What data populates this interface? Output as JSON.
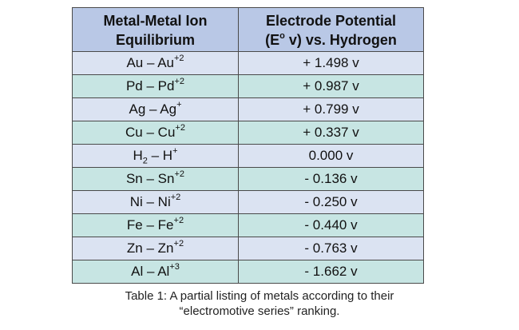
{
  "table": {
    "headers": [
      [
        "Metal-Metal Ion",
        "Equilibrium"
      ],
      [
        "Electrode Potential",
        "(E",
        "o",
        " v) vs. Hydrogen"
      ]
    ],
    "rows": [
      {
        "metal": "Au – Au",
        "sup": "+2",
        "sub": "",
        "ion": "",
        "potential": "+ 1.498 v"
      },
      {
        "metal": "Pd – Pd",
        "sup": "+2",
        "sub": "",
        "ion": "",
        "potential": "+ 0.987 v"
      },
      {
        "metal": "Ag – Ag",
        "sup": "+",
        "sub": "",
        "ion": "",
        "potential": "+ 0.799 v"
      },
      {
        "metal": "Cu – Cu",
        "sup": "+2",
        "sub": "",
        "ion": "",
        "potential": "+ 0.337 v"
      },
      {
        "metal": "H",
        "sub": "2",
        "ion": " – H",
        "sup": "+",
        "potential": "0.000 v"
      },
      {
        "metal": "Sn – Sn",
        "sup": "+2",
        "sub": "",
        "ion": "",
        "potential": "- 0.136 v"
      },
      {
        "metal": "Ni – Ni",
        "sup": "+2",
        "sub": "",
        "ion": "",
        "potential": "- 0.250 v"
      },
      {
        "metal": "Fe – Fe",
        "sup": "+2",
        "sub": "",
        "ion": "",
        "potential": "- 0.440 v"
      },
      {
        "metal": "Zn – Zn",
        "sup": "+2",
        "sub": "",
        "ion": "",
        "potential": "- 0.763 v"
      },
      {
        "metal": "Al – Al",
        "sup": "+3",
        "sub": "",
        "ion": "",
        "potential": "- 1.662 v"
      }
    ]
  },
  "caption": {
    "line1": "Table 1: A partial listing of metals according to their",
    "line2": "“electromotive series” ranking."
  },
  "colors": {
    "header_bg": "#b9c8e6",
    "row_light": "#dbe3f2",
    "row_teal": "#c7e5e3"
  }
}
